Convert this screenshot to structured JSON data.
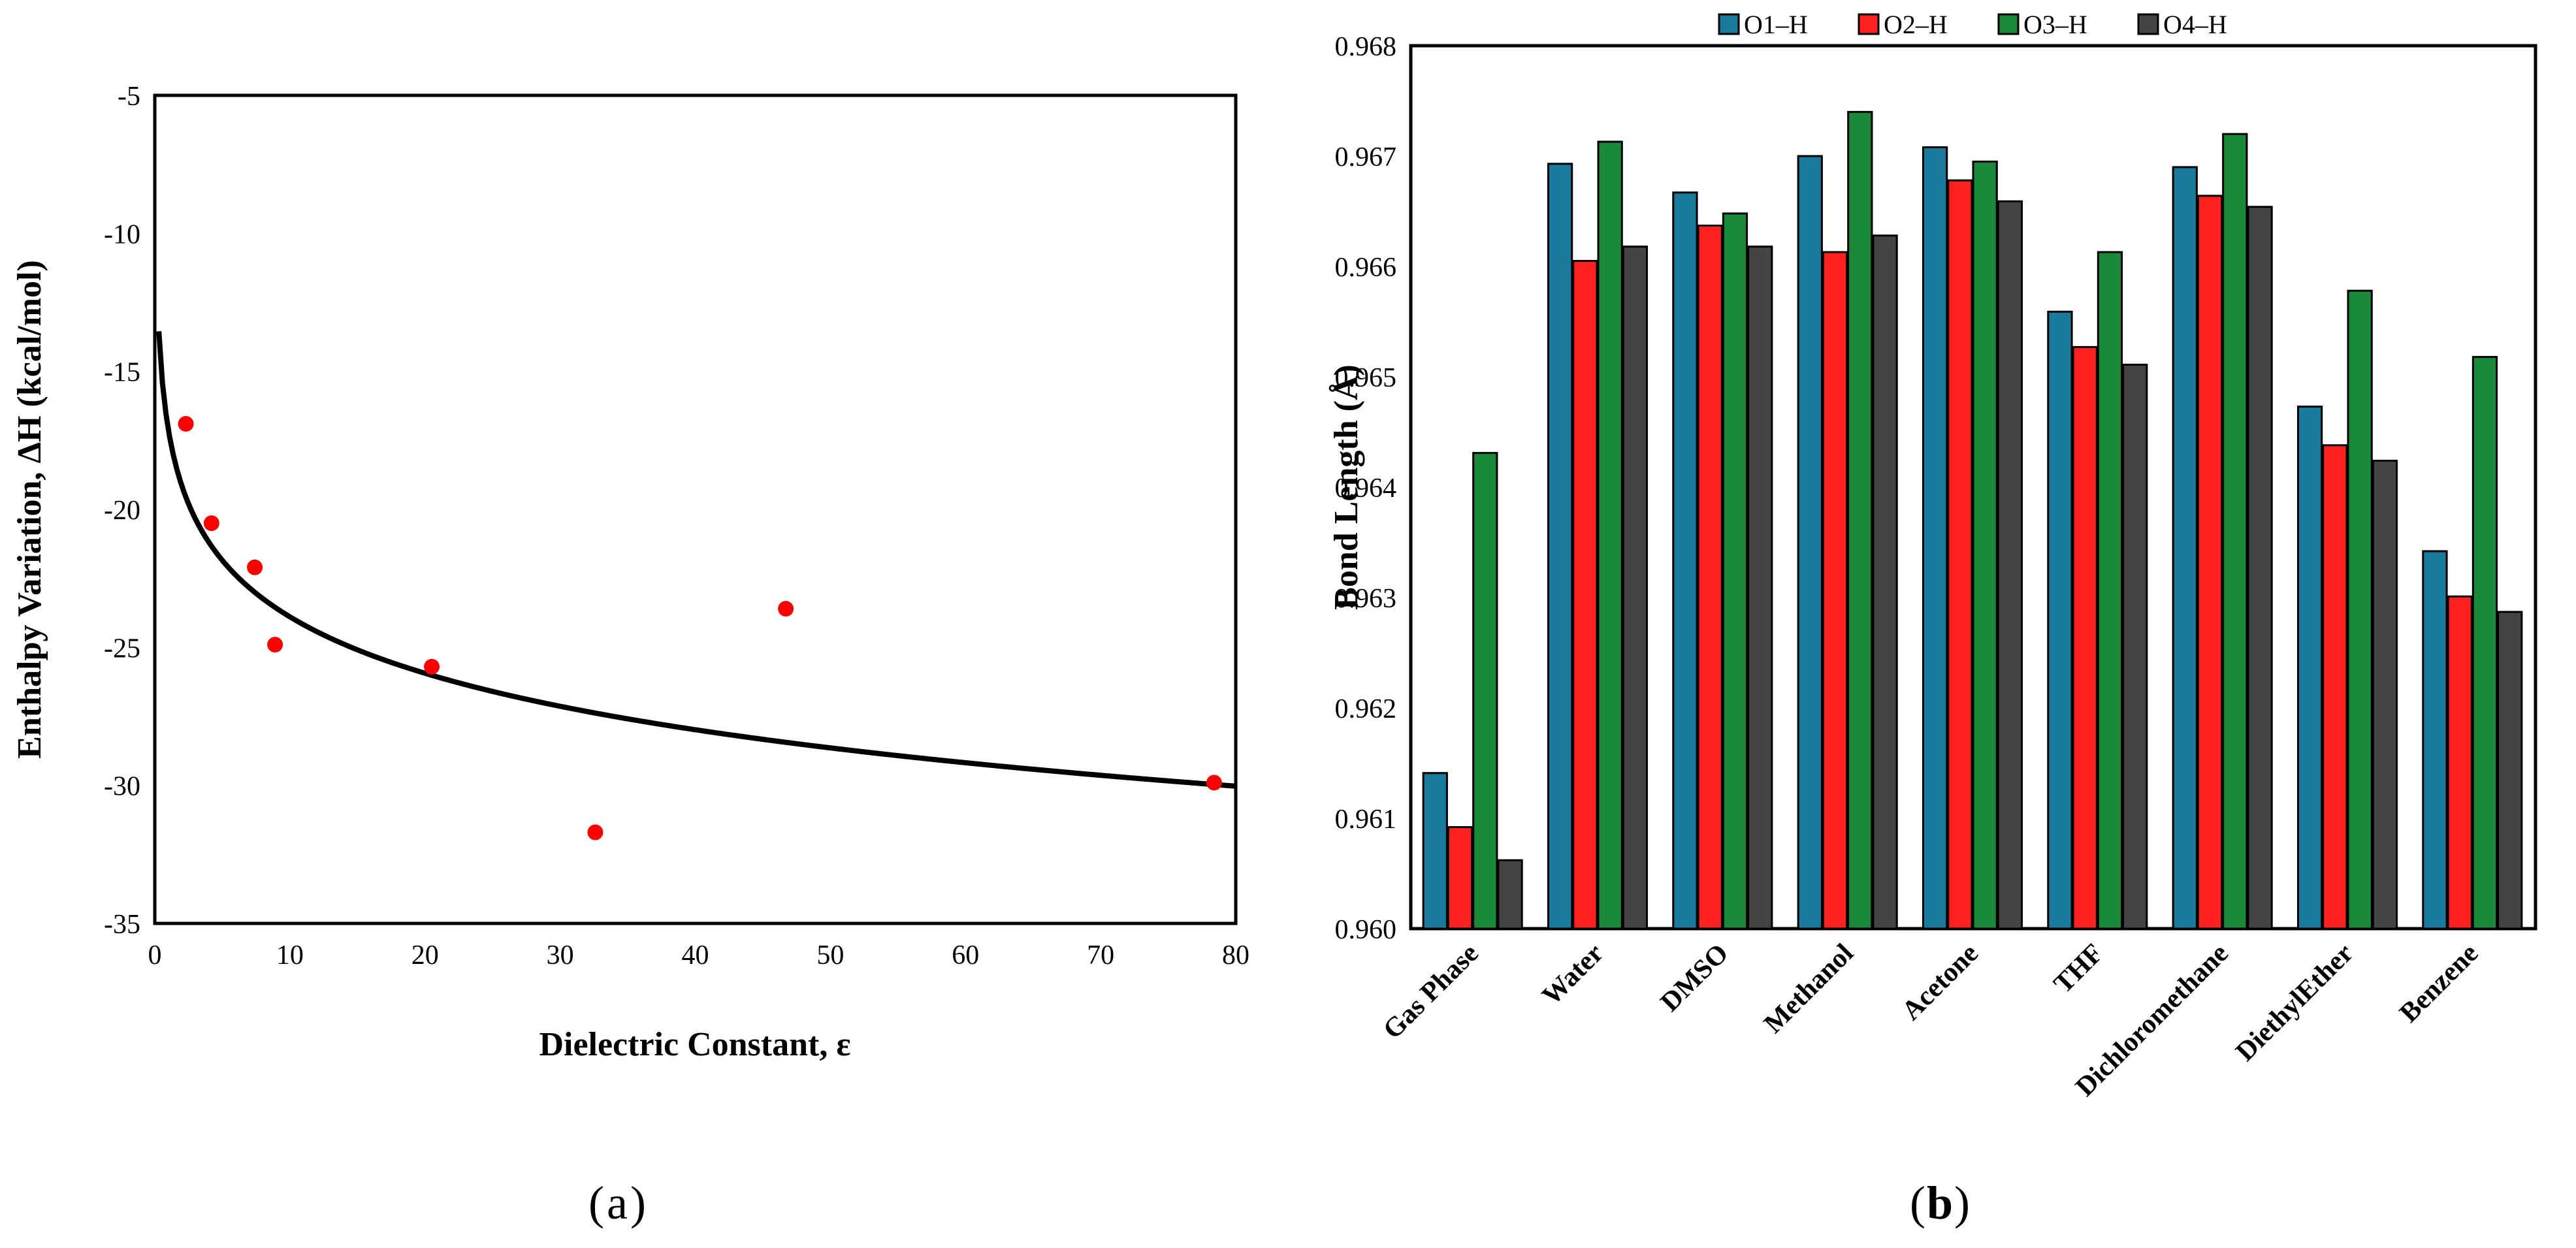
{
  "chart_data": [
    {
      "id": "a",
      "panel_label": "a",
      "type": "scatter",
      "title": "",
      "xlabel": "Dielectric Constant, ε",
      "ylabel": "Enthalpy Variation, ΔH (kcal/mol)",
      "xlim": [
        0,
        80
      ],
      "ylim": [
        -35,
        -5
      ],
      "xticks": [
        0,
        10,
        20,
        30,
        40,
        50,
        60,
        70,
        80
      ],
      "yticks": [
        -5,
        -10,
        -15,
        -20,
        -25,
        -30,
        -35
      ],
      "grid": false,
      "point_color": "#ff0000",
      "fit_color": "#000000",
      "points": [
        {
          "x": 2.3,
          "y": -16.9
        },
        {
          "x": 4.2,
          "y": -20.5
        },
        {
          "x": 7.4,
          "y": -22.1
        },
        {
          "x": 8.9,
          "y": -24.9
        },
        {
          "x": 20.5,
          "y": -25.7
        },
        {
          "x": 32.6,
          "y": -31.7
        },
        {
          "x": 46.7,
          "y": -23.6
        },
        {
          "x": 78.4,
          "y": -29.9
        }
      ],
      "fit": {
        "model": "logarithmic",
        "equation": "y = a + b*ln(x)",
        "a": -17.1,
        "b": -2.95,
        "x_range": [
          0.3,
          80
        ]
      }
    },
    {
      "id": "b",
      "panel_label": "b",
      "type": "bar",
      "title": "",
      "xlabel": "",
      "ylabel": "Bond Length (Å)",
      "ylim": [
        0.96,
        0.968
      ],
      "yticks": [
        "0.960",
        "0.961",
        "0.962",
        "0.963",
        "0.964",
        "0.965",
        "0.966",
        "0.967",
        "0.968"
      ],
      "grid": false,
      "legend_position": "top",
      "categories": [
        "Gas Phase",
        "Water",
        "DMSO",
        "Methanol",
        "Acetone",
        "THF",
        "Dichloromethane",
        "DiethylEther",
        "Benzene"
      ],
      "series": [
        {
          "name": "O1–H",
          "color": "#1a7a9e",
          "values": [
            0.96141,
            0.96693,
            0.96667,
            0.967,
            0.96708,
            0.96559,
            0.9669,
            0.96473,
            0.96342
          ]
        },
        {
          "name": "O2–H",
          "color": "#ff2020",
          "values": [
            0.96092,
            0.96605,
            0.96637,
            0.96613,
            0.96678,
            0.96527,
            0.96664,
            0.96438,
            0.96301
          ]
        },
        {
          "name": "O3–H",
          "color": "#1a8a3a",
          "values": [
            0.96431,
            0.96713,
            0.96648,
            0.9674,
            0.96695,
            0.96613,
            0.9672,
            0.96578,
            0.96518
          ]
        },
        {
          "name": "O4–H",
          "color": "#444444",
          "values": [
            0.96062,
            0.96618,
            0.96618,
            0.96628,
            0.96659,
            0.96511,
            0.96654,
            0.96424,
            0.96287
          ]
        }
      ]
    }
  ]
}
